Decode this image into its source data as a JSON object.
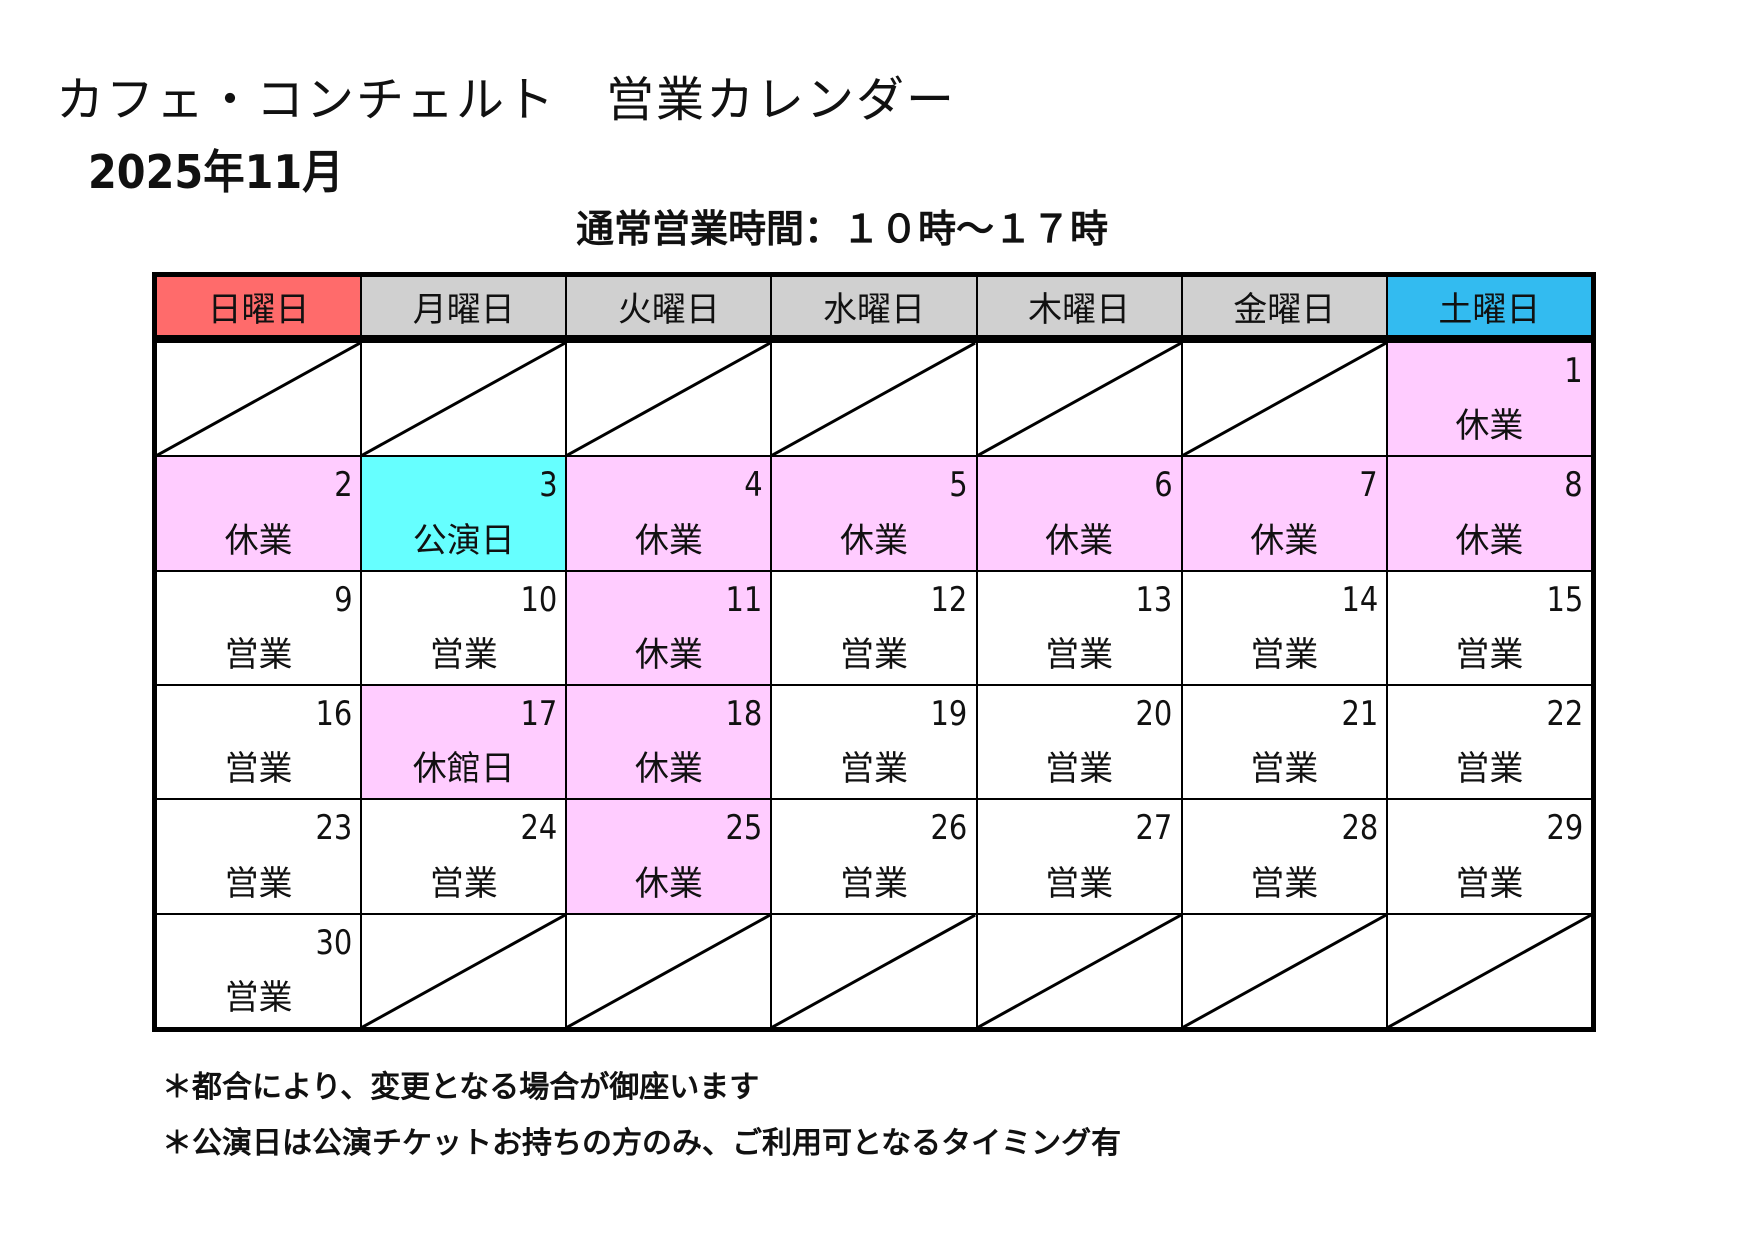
{
  "header": {
    "title": "カフェ・コンチェルト　営業カレンダー",
    "month": "2025年11月",
    "hours": "通常営業時間：１０時～１７時"
  },
  "calendar": {
    "weekdays": [
      "日曜日",
      "月曜日",
      "火曜日",
      "水曜日",
      "木曜日",
      "金曜日",
      "土曜日"
    ],
    "weekday_colors": [
      "#ff6b6b",
      "#d0d0d0",
      "#d0d0d0",
      "#d0d0d0",
      "#d0d0d0",
      "#d0d0d0",
      "#33bbf0"
    ],
    "status_colors": {
      "closed": "#ffccff",
      "performance": "#66ffff",
      "open": "#ffffff"
    },
    "weeks": [
      [
        null,
        null,
        null,
        null,
        null,
        null,
        {
          "day": 1,
          "label": "休業",
          "type": "closed"
        }
      ],
      [
        {
          "day": 2,
          "label": "休業",
          "type": "closed"
        },
        {
          "day": 3,
          "label": "公演日",
          "type": "performance"
        },
        {
          "day": 4,
          "label": "休業",
          "type": "closed"
        },
        {
          "day": 5,
          "label": "休業",
          "type": "closed"
        },
        {
          "day": 6,
          "label": "休業",
          "type": "closed"
        },
        {
          "day": 7,
          "label": "休業",
          "type": "closed"
        },
        {
          "day": 8,
          "label": "休業",
          "type": "closed"
        }
      ],
      [
        {
          "day": 9,
          "label": "営業",
          "type": "open"
        },
        {
          "day": 10,
          "label": "営業",
          "type": "open"
        },
        {
          "day": 11,
          "label": "休業",
          "type": "closed"
        },
        {
          "day": 12,
          "label": "営業",
          "type": "open"
        },
        {
          "day": 13,
          "label": "営業",
          "type": "open"
        },
        {
          "day": 14,
          "label": "営業",
          "type": "open"
        },
        {
          "day": 15,
          "label": "営業",
          "type": "open"
        }
      ],
      [
        {
          "day": 16,
          "label": "営業",
          "type": "open"
        },
        {
          "day": 17,
          "label": "休館日",
          "type": "closed"
        },
        {
          "day": 18,
          "label": "休業",
          "type": "closed"
        },
        {
          "day": 19,
          "label": "営業",
          "type": "open"
        },
        {
          "day": 20,
          "label": "営業",
          "type": "open"
        },
        {
          "day": 21,
          "label": "営業",
          "type": "open"
        },
        {
          "day": 22,
          "label": "営業",
          "type": "open"
        }
      ],
      [
        {
          "day": 23,
          "label": "営業",
          "type": "open"
        },
        {
          "day": 24,
          "label": "営業",
          "type": "open"
        },
        {
          "day": 25,
          "label": "休業",
          "type": "closed"
        },
        {
          "day": 26,
          "label": "営業",
          "type": "open"
        },
        {
          "day": 27,
          "label": "営業",
          "type": "open"
        },
        {
          "day": 28,
          "label": "営業",
          "type": "open"
        },
        {
          "day": 29,
          "label": "営業",
          "type": "open"
        }
      ],
      [
        {
          "day": 30,
          "label": "営業",
          "type": "open"
        },
        null,
        null,
        null,
        null,
        null,
        null
      ]
    ]
  },
  "notes": [
    "＊都合により、変更となる場合が御座います",
    "＊公演日は公演チケットお持ちの方のみ、ご利用可となるタイミング有"
  ]
}
